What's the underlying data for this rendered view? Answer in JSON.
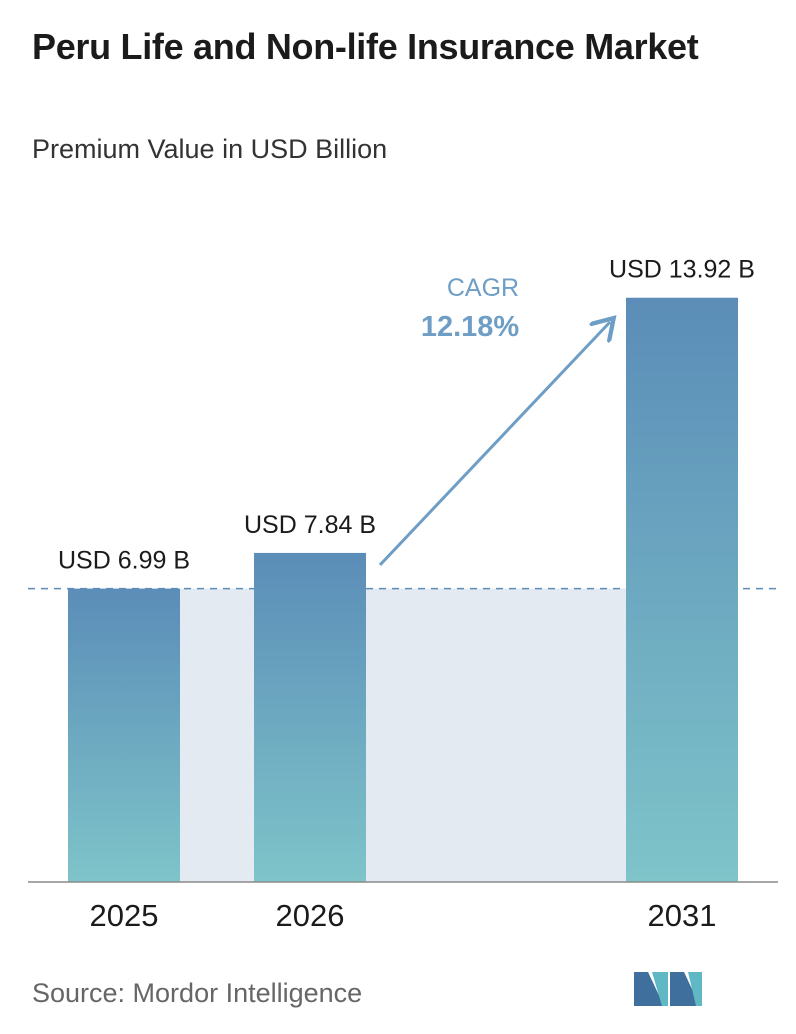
{
  "header": {
    "title": "Peru Life and Non-life Insurance Market",
    "subtitle": "Premium Value in USD Billion"
  },
  "chart_data": {
    "type": "bar",
    "categories": [
      "2025",
      "2026",
      "2031"
    ],
    "values": [
      6.99,
      7.84,
      13.92
    ],
    "value_labels": [
      "USD 6.99 B",
      "USD 7.84 B",
      "USD 13.92 B"
    ],
    "reference_line": 6.99,
    "annotation": {
      "label": "CAGR",
      "value": "12.18%"
    },
    "ylim": [
      0,
      14.7
    ],
    "grid": false,
    "legend": "none"
  },
  "footer": {
    "source": "Source: Mordor Intelligence"
  },
  "colors": {
    "bar_top": "#5b8db8",
    "bar_bottom": "#7ec4c9",
    "band_fill": "#e3eaf2",
    "reference_line": "#5b8db8",
    "arrow": "#6e9ec6",
    "axis": "#8a8a8a",
    "logo_dark": "#3f6f9d",
    "logo_light": "#5fb8c4"
  }
}
